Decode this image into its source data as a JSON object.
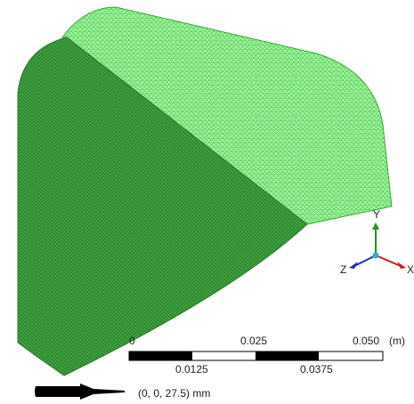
{
  "scale_bar": {
    "top_labels": [
      "0",
      "0.025",
      "0.050"
    ],
    "unit": "(m)",
    "bottom_labels": [
      "0.0125",
      "0.0375"
    ]
  },
  "triad": {
    "y": "Y",
    "z": "Z",
    "x": "X"
  },
  "position": "(0, 0, 27.5) mm"
}
